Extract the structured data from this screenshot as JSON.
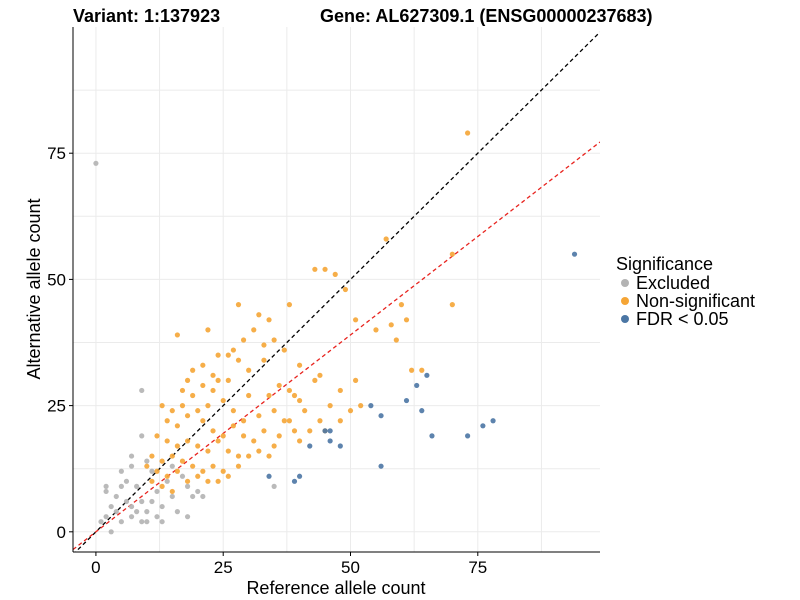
{
  "chart_data": {
    "type": "scatter",
    "title_left": "Variant: 1:137923",
    "title_right": "Gene: AL627309.1 (ENSG00000237683)",
    "xlabel": "Reference allele count",
    "ylabel": "Alternative allele count",
    "xlim": [
      -4.5,
      99
    ],
    "ylim": [
      -4,
      100
    ],
    "x_ticks": [
      0,
      25,
      50,
      75
    ],
    "y_ticks": [
      0,
      25,
      50,
      75
    ],
    "grid": true,
    "reference_lines": [
      {
        "name": "identity",
        "slope": 1,
        "intercept": 0,
        "color": "#000000",
        "dash": "4,3"
      },
      {
        "name": "fitted",
        "slope": 0.78,
        "intercept": 0,
        "color": "#e8231e",
        "dash": "4,3"
      }
    ],
    "legend": {
      "title": "Significance",
      "position": "right",
      "entries": [
        "Excluded",
        "Non-significant",
        "FDR < 0.05"
      ]
    },
    "series": [
      {
        "name": "Excluded",
        "color": "#b3b3b3",
        "points": [
          [
            0,
            73
          ],
          [
            9,
            28
          ],
          [
            1,
            2
          ],
          [
            2,
            3
          ],
          [
            3,
            0
          ],
          [
            2,
            8
          ],
          [
            2,
            9
          ],
          [
            3,
            5
          ],
          [
            4,
            4
          ],
          [
            4,
            7
          ],
          [
            5,
            12
          ],
          [
            5,
            9
          ],
          [
            5,
            2
          ],
          [
            6,
            6
          ],
          [
            6,
            10
          ],
          [
            7,
            3
          ],
          [
            7,
            5
          ],
          [
            7,
            15
          ],
          [
            7,
            13
          ],
          [
            8,
            9
          ],
          [
            8,
            4
          ],
          [
            9,
            2
          ],
          [
            9,
            6
          ],
          [
            10,
            4
          ],
          [
            10,
            2
          ],
          [
            10,
            14
          ],
          [
            9,
            19
          ],
          [
            11,
            12
          ],
          [
            11,
            6
          ],
          [
            12,
            3
          ],
          [
            12,
            8
          ],
          [
            13,
            2
          ],
          [
            13,
            5
          ],
          [
            14,
            10
          ],
          [
            15,
            7
          ],
          [
            15,
            13
          ],
          [
            16,
            4
          ],
          [
            17,
            11
          ],
          [
            18,
            9
          ],
          [
            18,
            3
          ],
          [
            19,
            7
          ],
          [
            20,
            8
          ],
          [
            21,
            7
          ],
          [
            35,
            9
          ]
        ]
      },
      {
        "name": "Non-significant",
        "color": "#f5a535",
        "points": [
          [
            73,
            79
          ],
          [
            57,
            58
          ],
          [
            70,
            55
          ],
          [
            49,
            48
          ],
          [
            43,
            52
          ],
          [
            45,
            52
          ],
          [
            47,
            51
          ],
          [
            38,
            45
          ],
          [
            28,
            45
          ],
          [
            60,
            45
          ],
          [
            70,
            45
          ],
          [
            61,
            42
          ],
          [
            58,
            41
          ],
          [
            59,
            38
          ],
          [
            55,
            40
          ],
          [
            62,
            32
          ],
          [
            51,
            42
          ],
          [
            64,
            32
          ],
          [
            16,
            39
          ],
          [
            22,
            40
          ],
          [
            31,
            40
          ],
          [
            32,
            43
          ],
          [
            34,
            42
          ],
          [
            27,
            36
          ],
          [
            29,
            38
          ],
          [
            33,
            37
          ],
          [
            35,
            38
          ],
          [
            24,
            35
          ],
          [
            26,
            35
          ],
          [
            28,
            34
          ],
          [
            33,
            34
          ],
          [
            37,
            36
          ],
          [
            40,
            33
          ],
          [
            30,
            32
          ],
          [
            44,
            31
          ],
          [
            21,
            33
          ],
          [
            23,
            31
          ],
          [
            18,
            30
          ],
          [
            26,
            30
          ],
          [
            36,
            29
          ],
          [
            38,
            28
          ],
          [
            19,
            27
          ],
          [
            23,
            28
          ],
          [
            30,
            27
          ],
          [
            34,
            27
          ],
          [
            39,
            27
          ],
          [
            40,
            26
          ],
          [
            43,
            30
          ],
          [
            48,
            28
          ],
          [
            51,
            30
          ],
          [
            52,
            25
          ],
          [
            13,
            25
          ],
          [
            15,
            24
          ],
          [
            17,
            25
          ],
          [
            20,
            24
          ],
          [
            22,
            25
          ],
          [
            25,
            26
          ],
          [
            27,
            24
          ],
          [
            29,
            22
          ],
          [
            32,
            23
          ],
          [
            35,
            24
          ],
          [
            37,
            22
          ],
          [
            39,
            20
          ],
          [
            41,
            24
          ],
          [
            45,
            20
          ],
          [
            14,
            22
          ],
          [
            16,
            21
          ],
          [
            18,
            23
          ],
          [
            21,
            22
          ],
          [
            23,
            20
          ],
          [
            25,
            19
          ],
          [
            27,
            21
          ],
          [
            29,
            19
          ],
          [
            31,
            18
          ],
          [
            33,
            20
          ],
          [
            35,
            17
          ],
          [
            12,
            19
          ],
          [
            14,
            18
          ],
          [
            16,
            17
          ],
          [
            18,
            18
          ],
          [
            20,
            17
          ],
          [
            22,
            16
          ],
          [
            24,
            18
          ],
          [
            26,
            16
          ],
          [
            28,
            15
          ],
          [
            11,
            15
          ],
          [
            13,
            14
          ],
          [
            15,
            15
          ],
          [
            17,
            14
          ],
          [
            19,
            13
          ],
          [
            21,
            12
          ],
          [
            23,
            13
          ],
          [
            25,
            12
          ],
          [
            10,
            13
          ],
          [
            12,
            12
          ],
          [
            14,
            11
          ],
          [
            16,
            12
          ],
          [
            18,
            10
          ],
          [
            20,
            11
          ],
          [
            22,
            10
          ],
          [
            11,
            10
          ],
          [
            13,
            9
          ],
          [
            15,
            8
          ],
          [
            24,
            10
          ],
          [
            26,
            11
          ],
          [
            28,
            13
          ],
          [
            30,
            15
          ],
          [
            32,
            16
          ],
          [
            34,
            15
          ],
          [
            36,
            19
          ],
          [
            38,
            22
          ],
          [
            40,
            18
          ],
          [
            42,
            20
          ],
          [
            44,
            22
          ],
          [
            46,
            25
          ],
          [
            48,
            22
          ],
          [
            50,
            24
          ],
          [
            19,
            32
          ],
          [
            24,
            30
          ],
          [
            17,
            28
          ],
          [
            21,
            29
          ]
        ]
      },
      {
        "name": "FDR < 0.05",
        "color": "#4b76a4",
        "points": [
          [
            94,
            55
          ],
          [
            65,
            31
          ],
          [
            63,
            29
          ],
          [
            61,
            26
          ],
          [
            64,
            24
          ],
          [
            54,
            25
          ],
          [
            56,
            23
          ],
          [
            73,
            19
          ],
          [
            76,
            21
          ],
          [
            78,
            22
          ],
          [
            66,
            19
          ],
          [
            45,
            20
          ],
          [
            46,
            20
          ],
          [
            42,
            17
          ],
          [
            46,
            18
          ],
          [
            48,
            17
          ],
          [
            56,
            13
          ],
          [
            34,
            11
          ],
          [
            40,
            11
          ],
          [
            39,
            10
          ]
        ]
      }
    ]
  }
}
